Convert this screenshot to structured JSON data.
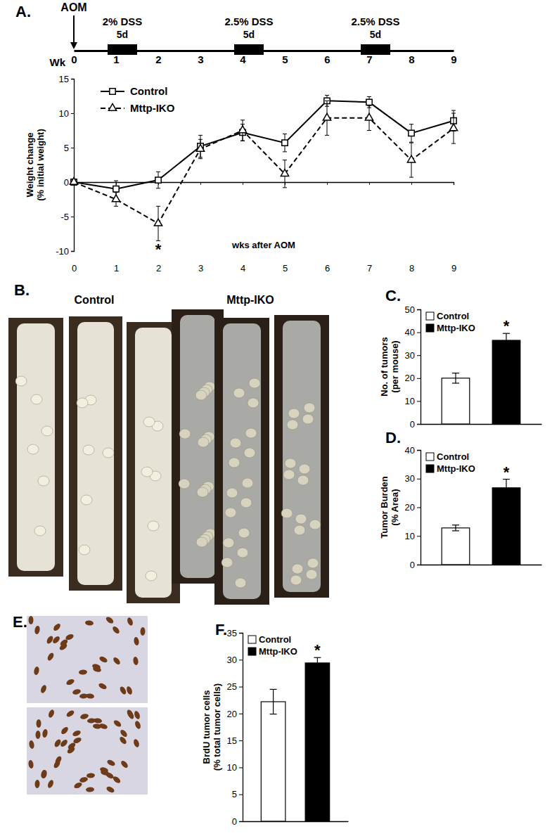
{
  "chart_data": [
    {
      "type": "line",
      "label": "A.",
      "x": [
        0,
        1,
        2,
        3,
        4,
        5,
        6,
        7,
        8,
        9
      ],
      "xlim": [
        0,
        9
      ],
      "xticks": [
        0,
        1,
        2,
        3,
        4,
        5,
        6,
        7,
        8,
        9
      ],
      "ylim": [
        -10,
        15
      ],
      "yticks": [
        -10,
        -5,
        0,
        5,
        10,
        15
      ],
      "x_label": "wks after AOM",
      "y_label": [
        "Weight change",
        "(% initial weight)"
      ],
      "legend": "upper left",
      "series": [
        {
          "name": "Control",
          "color": "#000000",
          "marker": "square",
          "line_style": "solid",
          "values": [
            0,
            -1,
            0.3,
            5.2,
            7.2,
            5.7,
            11.8,
            11.6,
            7.1,
            8.9
          ],
          "errors": [
            0,
            1.2,
            1.2,
            1.6,
            1.2,
            1.3,
            0.8,
            0.8,
            1.3,
            1.5
          ]
        },
        {
          "name": "Mttp-IKO",
          "color": "#000000",
          "marker": "triangle",
          "line_style": "dashed",
          "values": [
            0,
            -2.5,
            -6,
            4.8,
            7.5,
            1.2,
            9.3,
            9.3,
            3.2,
            7.8
          ],
          "errors": [
            0,
            1.0,
            2.5,
            1.4,
            1.5,
            2.0,
            2.5,
            1.8,
            2.5,
            2.2
          ]
        }
      ],
      "annotations": [
        {
          "text": "*",
          "x": 2,
          "series": "Mttp-IKO"
        }
      ]
    },
    {
      "type": "bar",
      "label": "C.",
      "categories": [
        null
      ],
      "ylim": [
        0,
        50
      ],
      "yticks": [
        0,
        10,
        20,
        30,
        40,
        50
      ],
      "y_label": [
        "No. of tumors",
        "(per mouse)"
      ],
      "legend": "upper left",
      "tick_labels": "y",
      "series": [
        {
          "name": "Control",
          "color": "#ffffff",
          "values": [
            20
          ],
          "errors": [
            2.2
          ]
        },
        {
          "name": "Mttp-IKO",
          "color": "#000000",
          "values": [
            36.5
          ],
          "errors": [
            3
          ]
        }
      ],
      "annotations": [
        {
          "text": "*",
          "series": "Mttp-IKO"
        }
      ]
    },
    {
      "type": "bar",
      "label": "D.",
      "categories": [
        null
      ],
      "ylim": [
        0,
        40
      ],
      "yticks": [
        0,
        10,
        20,
        30,
        40
      ],
      "y_label": [
        "Tumor Burden",
        "(% Area)"
      ],
      "legend": "upper left",
      "tick_labels": "y",
      "series": [
        {
          "name": "Control",
          "color": "#ffffff",
          "values": [
            12.8
          ],
          "errors": [
            1
          ]
        },
        {
          "name": "Mttp-IKO",
          "color": "#000000",
          "values": [
            26.8
          ],
          "errors": [
            3
          ]
        }
      ],
      "annotations": [
        {
          "text": "*",
          "series": "Mttp-IKO"
        }
      ]
    },
    {
      "type": "bar",
      "label": "F.",
      "categories": [
        null
      ],
      "ylim": [
        0,
        35
      ],
      "yticks": [
        0,
        5,
        10,
        15,
        20,
        25,
        30,
        35
      ],
      "y_label": [
        "BrdU tumor cells",
        "(% total tumor cells)"
      ],
      "legend": "upper left",
      "tick_labels": "y",
      "series": [
        {
          "name": "Control",
          "color": "#ffffff",
          "values": [
            22.2
          ],
          "errors": [
            2.3
          ]
        },
        {
          "name": "Mttp-IKO",
          "color": "#000000",
          "values": [
            29.4
          ],
          "errors": [
            1
          ]
        }
      ],
      "annotations": [
        {
          "text": "*",
          "series": "Mttp-IKO"
        }
      ]
    }
  ],
  "timeline": {
    "start_label": "AOM",
    "axis_label": "Wk",
    "weeks": [
      0,
      1,
      2,
      3,
      4,
      5,
      6,
      7,
      8,
      9
    ],
    "treatments": [
      {
        "label": "2% DSS",
        "duration": "5d",
        "start": 0.8,
        "end": 1.5
      },
      {
        "label": "2.5% DSS",
        "duration": "5d",
        "start": 3.8,
        "end": 4.5
      },
      {
        "label": "2.5% DSS",
        "duration": "5d",
        "start": 6.8,
        "end": 7.5
      }
    ]
  },
  "photos": [
    {
      "label": "B.",
      "groups": [
        "Control",
        "Mttp-IKO"
      ]
    },
    {
      "label": "E."
    }
  ]
}
